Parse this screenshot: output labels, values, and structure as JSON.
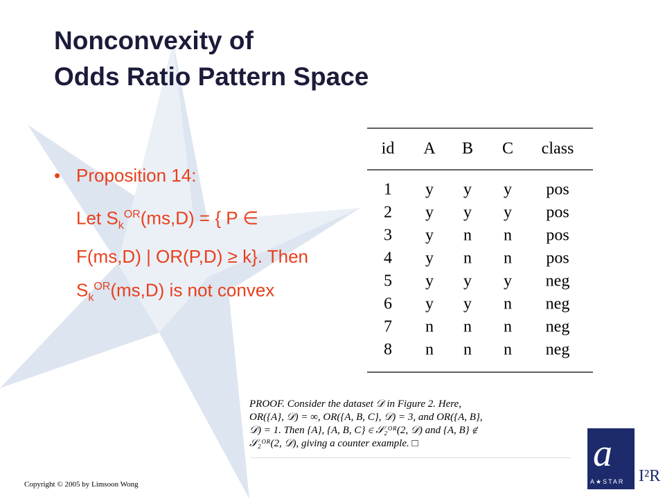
{
  "header": {
    "title_lines": [
      "Nonconvexity of",
      "Odds Ratio Pattern Space"
    ]
  },
  "body": {
    "bullet": "Proposition 14:",
    "statement": {
      "p1": "Let S",
      "sub1": "k",
      "sup1": "OR",
      "p2": "(ms,D) = { P ∈ F(ms,D) | OR(P,D) ≥ k}. Then S",
      "sub2": "k",
      "sup2": "OR",
      "p3": "(ms,D) is not convex"
    }
  },
  "table": {
    "header": [
      "id",
      "A",
      "B",
      "C",
      "class"
    ],
    "rows": [
      [
        "1",
        "y",
        "y",
        "y",
        "pos"
      ],
      [
        "2",
        "y",
        "y",
        "y",
        "pos"
      ],
      [
        "3",
        "y",
        "n",
        "n",
        "pos"
      ],
      [
        "4",
        "y",
        "n",
        "n",
        "pos"
      ],
      [
        "5",
        "y",
        "y",
        "y",
        "neg"
      ],
      [
        "6",
        "y",
        "y",
        "n",
        "neg"
      ],
      [
        "7",
        "n",
        "n",
        "n",
        "neg"
      ],
      [
        "8",
        "n",
        "n",
        "n",
        "neg"
      ]
    ]
  },
  "proof": {
    "lines": [
      "PROOF. Consider the dataset 𝒟 in Figure 2.  Here,",
      "OR({A}, 𝒟) = ∞, OR({A, B, C}, 𝒟) = 3, and OR({A, B},",
      "𝒟) = 1.  Then {A}, {A, B, C} ∈ 𝒮₂ᴼᴿ(2, 𝒟) and {A, B} ∉",
      "𝒮₂ᴼᴿ(2, 𝒟), giving a counter example.  □"
    ]
  },
  "footer": {
    "copyright": "Copyright © 2005 by Limsoon Wong",
    "logo_text": "A★STAR",
    "logo_letter": "a",
    "i2r": "I²R"
  }
}
